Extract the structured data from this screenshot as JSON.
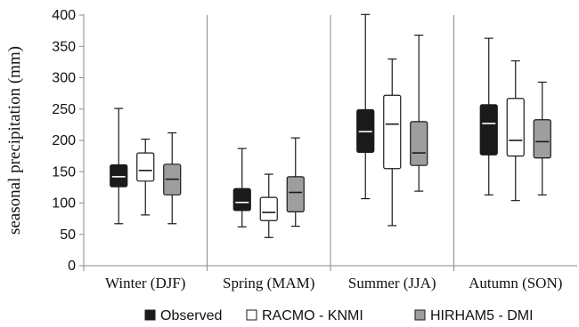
{
  "chart_data": {
    "type": "boxplot",
    "ylabel": "seasonal precipitation (mm)",
    "xlabel": "",
    "ylim": [
      0,
      400
    ],
    "yticks": [
      0,
      50,
      100,
      150,
      200,
      250,
      300,
      350,
      400
    ],
    "grid": false,
    "legend_position": "bottom",
    "categories": [
      "Winter (DJF)",
      "Spring (MAM)",
      "Summer (JJA)",
      "Autumn (SON)"
    ],
    "series": [
      {
        "name": "Observed",
        "color": "#1a1a1a",
        "median_color": "#ffffff",
        "boxes": [
          {
            "min": 67,
            "q1": 126,
            "median": 142,
            "q3": 161,
            "max": 251
          },
          {
            "min": 62,
            "q1": 88,
            "median": 101,
            "q3": 123,
            "max": 187
          },
          {
            "min": 107,
            "q1": 181,
            "median": 214,
            "q3": 249,
            "max": 401
          },
          {
            "min": 113,
            "q1": 177,
            "median": 227,
            "q3": 257,
            "max": 363
          }
        ]
      },
      {
        "name": "RACMO - KNMI",
        "color": "#ffffff",
        "median_color": "#1a1a1a",
        "boxes": [
          {
            "min": 81,
            "q1": 135,
            "median": 152,
            "q3": 180,
            "max": 202
          },
          {
            "min": 45,
            "q1": 72,
            "median": 85,
            "q3": 109,
            "max": 146
          },
          {
            "min": 64,
            "q1": 155,
            "median": 226,
            "q3": 272,
            "max": 330
          },
          {
            "min": 104,
            "q1": 175,
            "median": 200,
            "q3": 267,
            "max": 327
          }
        ]
      },
      {
        "name": "HIRHAM5 - DMI",
        "color": "#9e9e9e",
        "median_color": "#1a1a1a",
        "boxes": [
          {
            "min": 67,
            "q1": 113,
            "median": 138,
            "q3": 162,
            "max": 212
          },
          {
            "min": 63,
            "q1": 86,
            "median": 117,
            "q3": 142,
            "max": 204
          },
          {
            "min": 119,
            "q1": 160,
            "median": 180,
            "q3": 230,
            "max": 368
          },
          {
            "min": 113,
            "q1": 172,
            "median": 198,
            "q3": 233,
            "max": 293
          }
        ]
      }
    ]
  }
}
